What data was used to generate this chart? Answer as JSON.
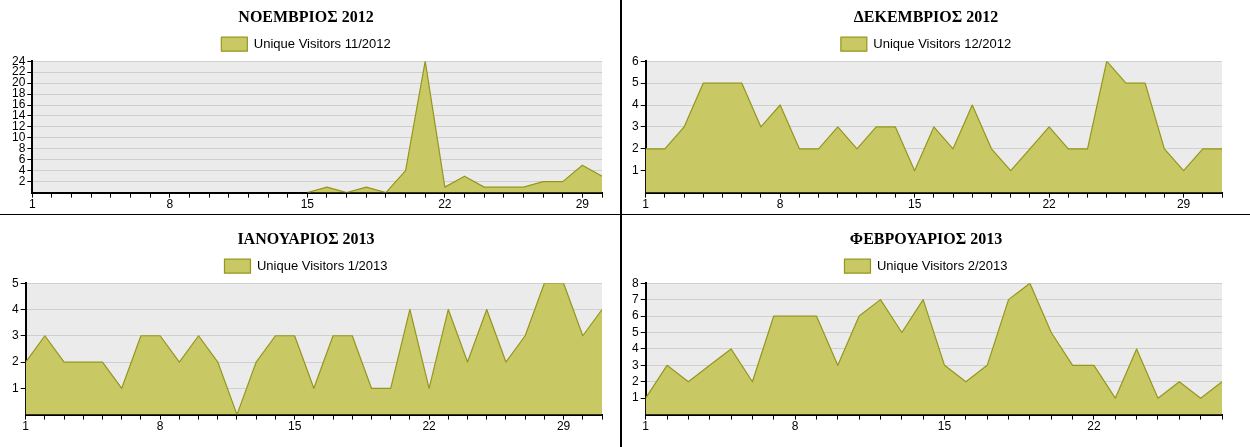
{
  "chart_data": [
    {
      "type": "area",
      "title": "ΝΟΕΜΒΡΙΟΣ 2012",
      "x": [
        15,
        16,
        17,
        18,
        19,
        20,
        21,
        22,
        23,
        24,
        25,
        26,
        27,
        28,
        29,
        30
      ],
      "series": [
        {
          "name": "Unique Visitors 11/2012",
          "color": "#c8c864",
          "values": [
            0,
            1,
            0,
            1,
            0,
            4,
            24,
            1,
            3,
            1,
            1,
            1,
            2,
            2,
            5,
            3
          ]
        }
      ],
      "xlim": [
        1,
        30
      ],
      "xticks": [
        1,
        {
          "value": 2,
          "label": null
        },
        {
          "value": 3,
          "label": null
        },
        {
          "value": 4,
          "label": null
        },
        {
          "value": 5,
          "label": null
        },
        {
          "value": 6,
          "label": null
        },
        {
          "value": 7,
          "label": null
        },
        8,
        {
          "value": 9,
          "label": null
        },
        {
          "value": 10,
          "label": null
        },
        {
          "value": 11,
          "label": null
        },
        {
          "value": 12,
          "label": null
        },
        {
          "value": 13,
          "label": null
        },
        {
          "value": 14,
          "label": null
        },
        15,
        {
          "value": 16,
          "label": null
        },
        {
          "value": 17,
          "label": null
        },
        {
          "value": 18,
          "label": null
        },
        {
          "value": 19,
          "label": null
        },
        {
          "value": 20,
          "label": null
        },
        {
          "value": 21,
          "label": null
        },
        22,
        {
          "value": 23,
          "label": null
        },
        {
          "value": 24,
          "label": null
        },
        {
          "value": 25,
          "label": null
        },
        {
          "value": 26,
          "label": null
        },
        {
          "value": 27,
          "label": null
        },
        {
          "value": 28,
          "label": null
        },
        29,
        {
          "value": 30,
          "label": null
        }
      ],
      "ylim": [
        0,
        24
      ],
      "yticks": [
        2,
        4,
        6,
        8,
        10,
        12,
        14,
        16,
        18,
        20,
        22,
        24
      ],
      "grid": "y",
      "legend": "top",
      "marker": "none"
    },
    {
      "type": "area",
      "title": "ΔΕΚΕΜΒΡΙΟΣ 2012",
      "x": [
        1,
        2,
        3,
        4,
        5,
        6,
        7,
        8,
        9,
        10,
        11,
        12,
        13,
        14,
        15,
        16,
        17,
        18,
        19,
        20,
        21,
        22,
        23,
        24,
        25,
        26,
        27,
        28,
        29,
        30,
        31
      ],
      "series": [
        {
          "name": "Unique Visitors 12/2012",
          "color": "#c8c864",
          "values": [
            2,
            2,
            3,
            5,
            5,
            5,
            3,
            4,
            2,
            2,
            3,
            2,
            3,
            3,
            1,
            3,
            2,
            4,
            2,
            1,
            2,
            3,
            2,
            2,
            6,
            5,
            5,
            2,
            1,
            2,
            2
          ]
        }
      ],
      "xlim": [
        1,
        31
      ],
      "xticks": [
        1,
        {
          "value": 2,
          "label": null
        },
        {
          "value": 3,
          "label": null
        },
        {
          "value": 4,
          "label": null
        },
        {
          "value": 5,
          "label": null
        },
        {
          "value": 6,
          "label": null
        },
        {
          "value": 7,
          "label": null
        },
        8,
        {
          "value": 9,
          "label": null
        },
        {
          "value": 10,
          "label": null
        },
        {
          "value": 11,
          "label": null
        },
        {
          "value": 12,
          "label": null
        },
        {
          "value": 13,
          "label": null
        },
        {
          "value": 14,
          "label": null
        },
        15,
        {
          "value": 16,
          "label": null
        },
        {
          "value": 17,
          "label": null
        },
        {
          "value": 18,
          "label": null
        },
        {
          "value": 19,
          "label": null
        },
        {
          "value": 20,
          "label": null
        },
        {
          "value": 21,
          "label": null
        },
        22,
        {
          "value": 23,
          "label": null
        },
        {
          "value": 24,
          "label": null
        },
        {
          "value": 25,
          "label": null
        },
        {
          "value": 26,
          "label": null
        },
        {
          "value": 27,
          "label": null
        },
        {
          "value": 28,
          "label": null
        },
        29,
        {
          "value": 30,
          "label": null
        },
        {
          "value": 31,
          "label": null
        }
      ],
      "ylim": [
        0,
        6
      ],
      "yticks": [
        1,
        2,
        3,
        4,
        5,
        6
      ],
      "grid": "y",
      "legend": "top",
      "marker": "none"
    },
    {
      "type": "area",
      "title": "ΙΑΝΟΥΑΡΙΟΣ 2013",
      "x": [
        1,
        2,
        3,
        4,
        5,
        6,
        7,
        8,
        9,
        10,
        11,
        12,
        13,
        14,
        15,
        16,
        17,
        18,
        19,
        20,
        21,
        22,
        23,
        24,
        25,
        26,
        27,
        28,
        29,
        30,
        31
      ],
      "series": [
        {
          "name": "Unique Visitors 1/2013",
          "color": "#c8c864",
          "values": [
            2,
            3,
            2,
            2,
            2,
            1,
            3,
            3,
            2,
            3,
            2,
            0,
            2,
            3,
            3,
            1,
            3,
            3,
            1,
            1,
            4,
            1,
            4,
            2,
            4,
            2,
            3,
            5,
            5,
            3,
            4
          ]
        }
      ],
      "xlim": [
        1,
        31
      ],
      "xticks": [
        1,
        {
          "value": 2,
          "label": null
        },
        {
          "value": 3,
          "label": null
        },
        {
          "value": 4,
          "label": null
        },
        {
          "value": 5,
          "label": null
        },
        {
          "value": 6,
          "label": null
        },
        {
          "value": 7,
          "label": null
        },
        8,
        {
          "value": 9,
          "label": null
        },
        {
          "value": 10,
          "label": null
        },
        {
          "value": 11,
          "label": null
        },
        {
          "value": 12,
          "label": null
        },
        {
          "value": 13,
          "label": null
        },
        {
          "value": 14,
          "label": null
        },
        15,
        {
          "value": 16,
          "label": null
        },
        {
          "value": 17,
          "label": null
        },
        {
          "value": 18,
          "label": null
        },
        {
          "value": 19,
          "label": null
        },
        {
          "value": 20,
          "label": null
        },
        {
          "value": 21,
          "label": null
        },
        22,
        {
          "value": 23,
          "label": null
        },
        {
          "value": 24,
          "label": null
        },
        {
          "value": 25,
          "label": null
        },
        {
          "value": 26,
          "label": null
        },
        {
          "value": 27,
          "label": null
        },
        {
          "value": 28,
          "label": null
        },
        29,
        {
          "value": 30,
          "label": null
        },
        {
          "value": 31,
          "label": null
        }
      ],
      "ylim": [
        0,
        5
      ],
      "yticks": [
        1,
        2,
        3,
        4,
        5
      ],
      "grid": "y",
      "legend": "top",
      "marker": "none"
    },
    {
      "type": "area",
      "title": "ΦΕΒΡΟΥΑΡΙΟΣ 2013",
      "x": [
        1,
        2,
        3,
        4,
        5,
        6,
        7,
        8,
        9,
        10,
        11,
        12,
        13,
        14,
        15,
        16,
        17,
        18,
        19,
        20,
        21,
        22,
        23,
        24,
        25,
        26,
        27,
        28
      ],
      "series": [
        {
          "name": "Unique Visitors 2/2013",
          "color": "#c8c864",
          "values": [
            1,
            3,
            2,
            3,
            4,
            2,
            6,
            6,
            6,
            3,
            6,
            7,
            5,
            7,
            3,
            2,
            3,
            7,
            8,
            5,
            3,
            3,
            1,
            4,
            1,
            2,
            1,
            2
          ]
        }
      ],
      "xlim": [
        1,
        28
      ],
      "xticks": [
        1,
        {
          "value": 2,
          "label": null
        },
        {
          "value": 3,
          "label": null
        },
        {
          "value": 4,
          "label": null
        },
        {
          "value": 5,
          "label": null
        },
        {
          "value": 6,
          "label": null
        },
        {
          "value": 7,
          "label": null
        },
        8,
        {
          "value": 9,
          "label": null
        },
        {
          "value": 10,
          "label": null
        },
        {
          "value": 11,
          "label": null
        },
        {
          "value": 12,
          "label": null
        },
        {
          "value": 13,
          "label": null
        },
        {
          "value": 14,
          "label": null
        },
        15,
        {
          "value": 16,
          "label": null
        },
        {
          "value": 17,
          "label": null
        },
        {
          "value": 18,
          "label": null
        },
        {
          "value": 19,
          "label": null
        },
        {
          "value": 20,
          "label": null
        },
        {
          "value": 21,
          "label": null
        },
        22,
        {
          "value": 23,
          "label": null
        },
        {
          "value": 24,
          "label": null
        },
        {
          "value": 25,
          "label": null
        },
        {
          "value": 26,
          "label": null
        },
        {
          "value": 27,
          "label": null
        },
        {
          "value": 28,
          "label": null
        }
      ],
      "ylim": [
        0,
        8
      ],
      "yticks": [
        1,
        2,
        3,
        4,
        5,
        6,
        7,
        8
      ],
      "grid": "y",
      "legend": "top",
      "marker": "none"
    }
  ]
}
